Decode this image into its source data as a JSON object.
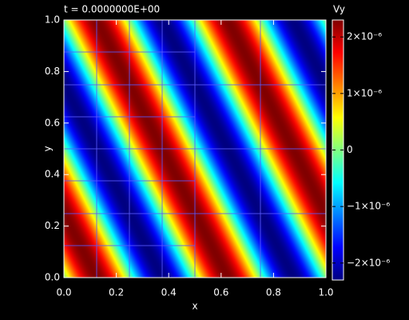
{
  "chart_data": {
    "type": "heatmap",
    "title": "t = 0.0000000E+00",
    "x_label": "x",
    "y_label": "y",
    "xlim": [
      0,
      1
    ],
    "ylim": [
      0,
      1
    ],
    "xticks": [
      {
        "value": 0,
        "label": "0.0"
      },
      {
        "value": 0.2,
        "label": "0.2"
      },
      {
        "value": 0.4,
        "label": "0.4"
      },
      {
        "value": 0.6,
        "label": "0.6"
      },
      {
        "value": 0.8,
        "label": "0.8"
      },
      {
        "value": 1,
        "label": "1.0"
      }
    ],
    "yticks": [
      {
        "value": 0,
        "label": "0.0"
      },
      {
        "value": 0.2,
        "label": "0.2"
      },
      {
        "value": 0.4,
        "label": "0.4"
      },
      {
        "value": 0.6,
        "label": "0.6"
      },
      {
        "value": 0.8,
        "label": "0.8"
      },
      {
        "value": 1,
        "label": "1.0"
      }
    ],
    "colormap": "jet",
    "colorbar": {
      "label": "Vy",
      "lim": [
        -2.3e-06,
        2.3e-06
      ],
      "ticks": [
        {
          "value": 2e-06,
          "label": "2×10⁻⁶"
        },
        {
          "value": 1e-06,
          "label": "1×10⁻⁶"
        },
        0,
        {
          "value": -1e-06,
          "label": "−1×10⁻⁶"
        },
        {
          "value": -2e-06,
          "label": "−2×10⁻⁶"
        }
      ]
    }
  }
}
